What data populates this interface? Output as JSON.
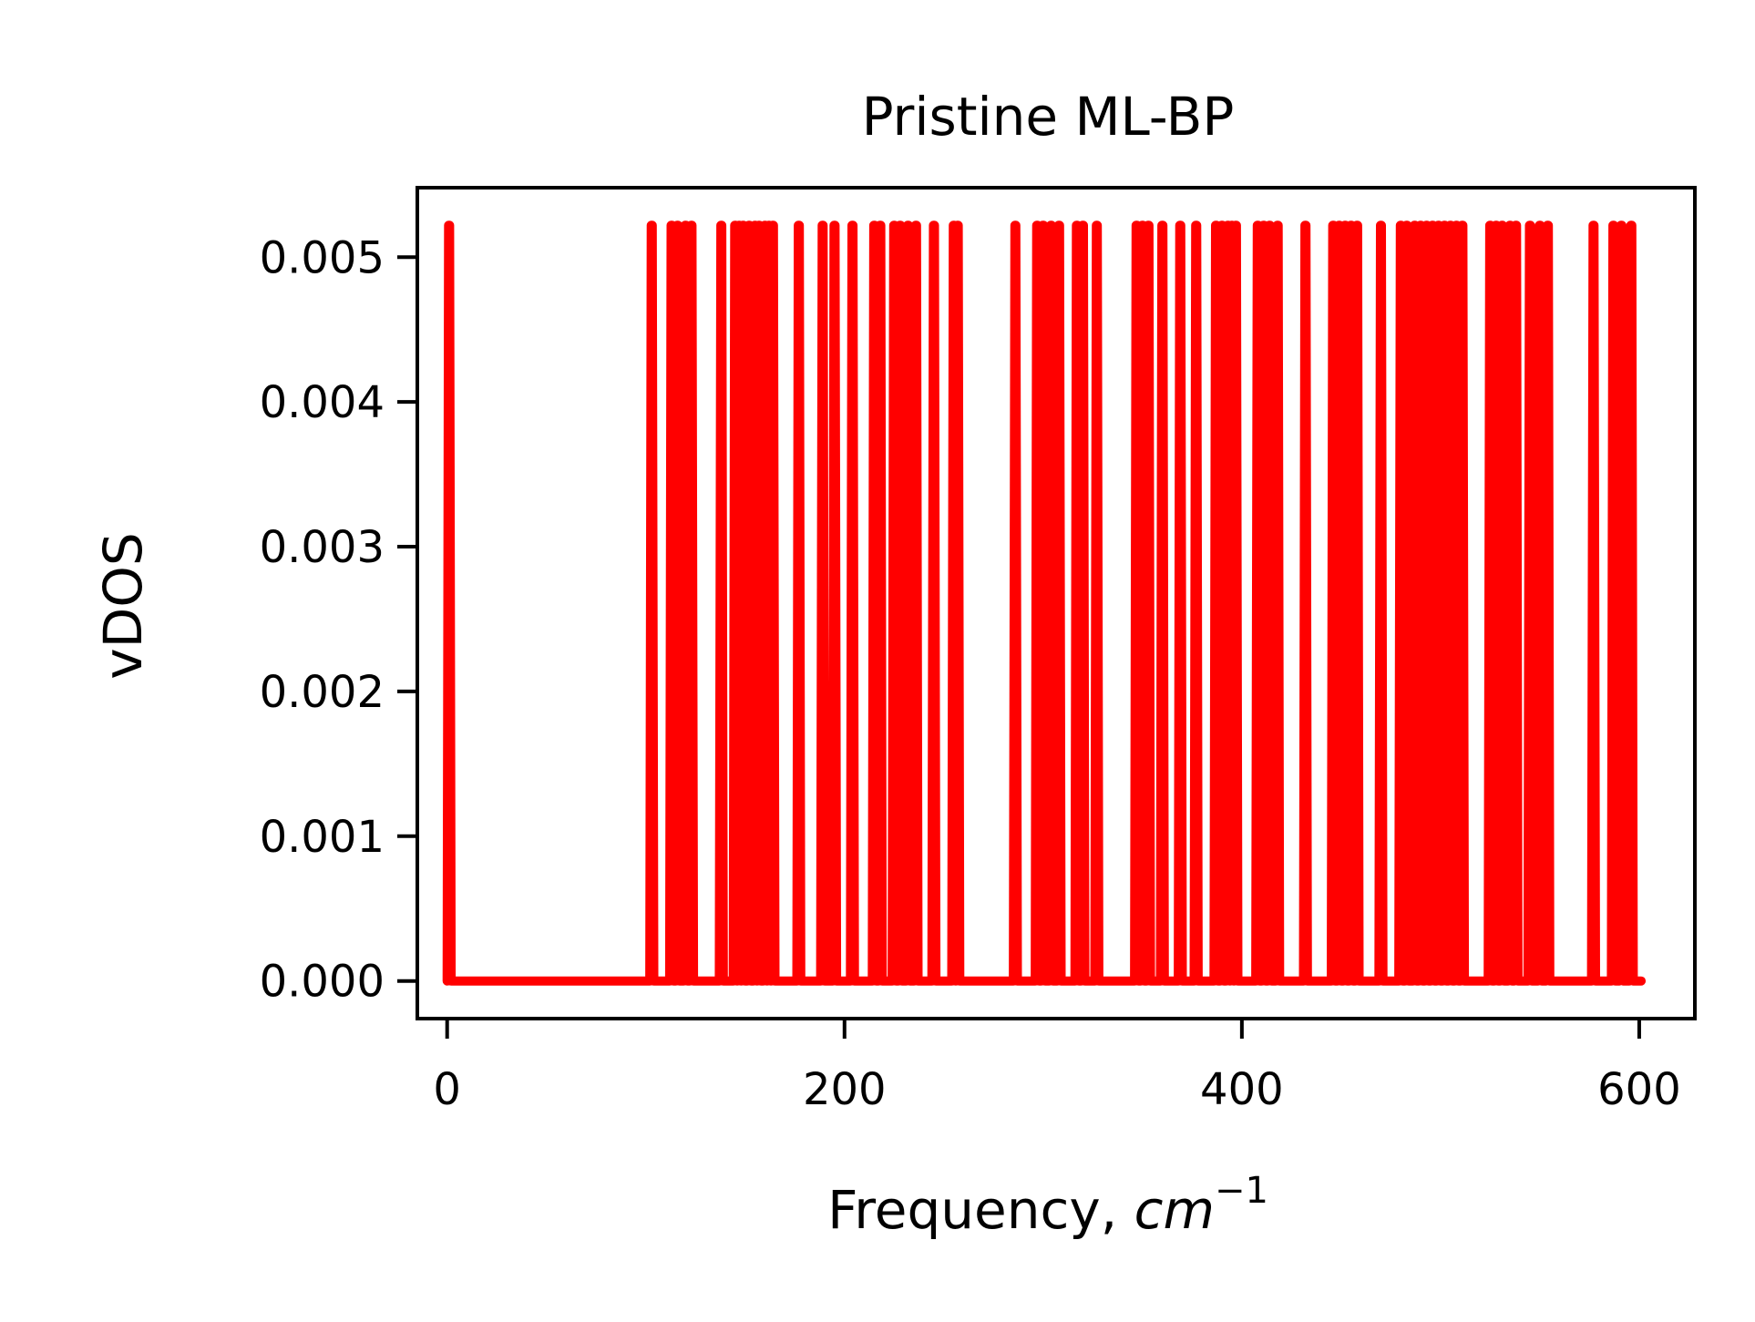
{
  "chart_data": {
    "type": "line",
    "title": "Pristine ML-BP",
    "xlabel_text": "Frequency, ",
    "xlabel_math": "cm",
    "xlabel_sup": "−1",
    "ylabel": "vDOS",
    "xlim": [
      -15,
      628
    ],
    "ylim": [
      -0.00026,
      0.00548
    ],
    "xticks": [
      0,
      200,
      400,
      600
    ],
    "xtick_labels": [
      "0",
      "200",
      "400",
      "600"
    ],
    "yticks": [
      0.0,
      0.001,
      0.002,
      0.003,
      0.004,
      0.005
    ],
    "ytick_labels": [
      "0.000",
      "0.001",
      "0.002",
      "0.003",
      "0.004",
      "0.005"
    ],
    "grid": false,
    "legend": "none",
    "series": [
      {
        "color": "#ff0000",
        "baseline": 0.0,
        "peak": 0.00522,
        "peak_frequencies": [
          1,
          103,
          113,
          116,
          120,
          123,
          138,
          145,
          147,
          149,
          152,
          155,
          157,
          160,
          162,
          164,
          177,
          189,
          195,
          204,
          215,
          218,
          225,
          228,
          232,
          236,
          245,
          255,
          257,
          286,
          297,
          300,
          304,
          308,
          317,
          320,
          327,
          347,
          350,
          353,
          360,
          369,
          377,
          387,
          390,
          393,
          395,
          397,
          408,
          411,
          414,
          418,
          432,
          446,
          449,
          452,
          455,
          458,
          470,
          480,
          483,
          487,
          490,
          493,
          496,
          499,
          502,
          505,
          508,
          511,
          525,
          528,
          531,
          535,
          538,
          545,
          550,
          554,
          577,
          587,
          591,
          596
        ]
      }
    ]
  }
}
